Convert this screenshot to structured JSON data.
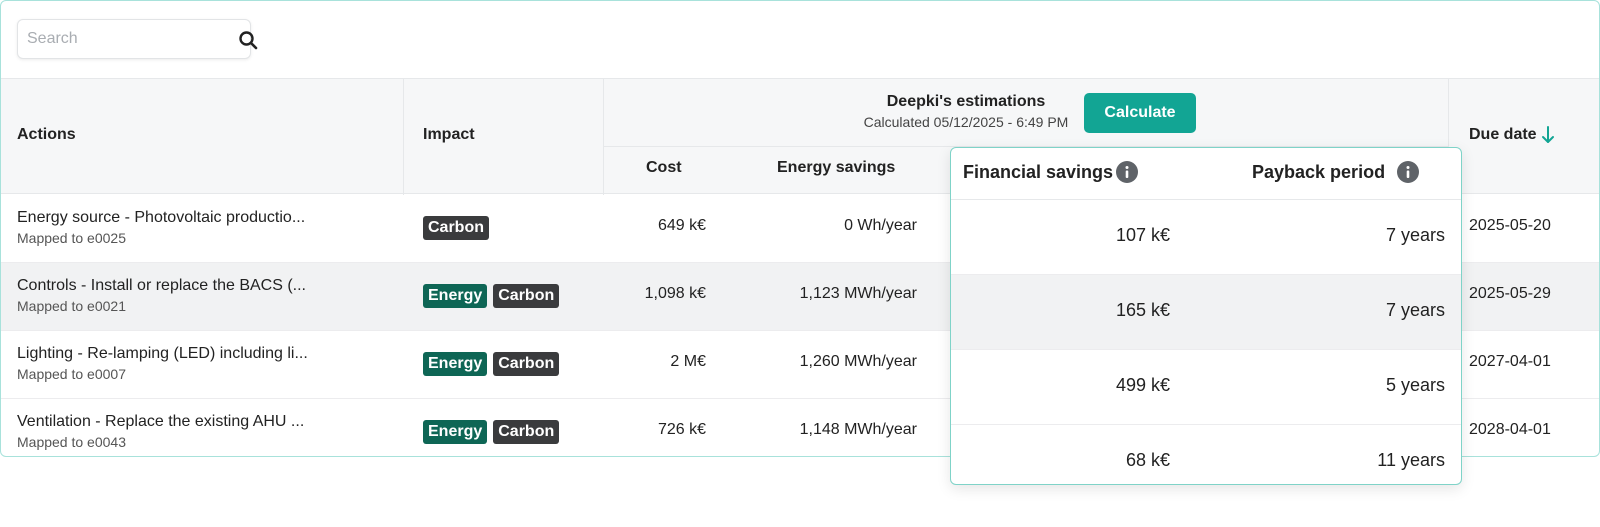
{
  "search": {
    "placeholder": "Search",
    "value": ""
  },
  "header": {
    "actions_label": "Actions",
    "impact_label": "Impact",
    "estimations_title": "Deepki's estimations",
    "estimations_subtitle": "Calculated 05/12/2025 - 6:49 PM",
    "calculate_label": "Calculate",
    "cost_label": "Cost",
    "energy_savings_label": "Energy savings",
    "due_date_label": "Due date"
  },
  "rows": [
    {
      "title": "Energy source - Photovoltaic productio...",
      "mapped": "Mapped to e0025",
      "tags": [
        "Carbon"
      ],
      "cost": "649 k€",
      "energy": "0 Wh/year",
      "due": "2025-05-20"
    },
    {
      "title": "Controls - Install or replace the BACS (...",
      "mapped": "Mapped to e0021",
      "tags": [
        "Energy",
        "Carbon"
      ],
      "cost": "1,098 k€",
      "energy": "1,123 MWh/year",
      "due": "2025-05-29"
    },
    {
      "title": "Lighting - Re-lamping (LED) including li...",
      "mapped": "Mapped to e0007",
      "tags": [
        "Energy",
        "Carbon"
      ],
      "cost": "2 M€",
      "energy": "1,260 MWh/year",
      "due": "2027-04-01"
    },
    {
      "title": "Ventilation - Replace the existing AHU ...",
      "mapped": "Mapped to e0043",
      "tags": [
        "Energy",
        "Carbon"
      ],
      "cost": "726 k€",
      "energy": "1,148 MWh/year",
      "due": "2028-04-01"
    }
  ],
  "popover": {
    "financial_label": "Financial savings",
    "payback_label": "Payback period",
    "rows": [
      {
        "financial": "107 k€",
        "payback": "7 years"
      },
      {
        "financial": "165 k€",
        "payback": "7 years"
      },
      {
        "financial": "499 k€",
        "payback": "5 years"
      },
      {
        "financial": "68 k€",
        "payback": "11 years"
      }
    ]
  },
  "colors": {
    "accent": "#12a594",
    "energy_tag": "#0e6655",
    "carbon_tag": "#3a3b3d",
    "info_icon": "#5f6368"
  },
  "icons": {
    "search": "search-icon",
    "sort": "arrow-down-icon",
    "info": "info-icon"
  }
}
